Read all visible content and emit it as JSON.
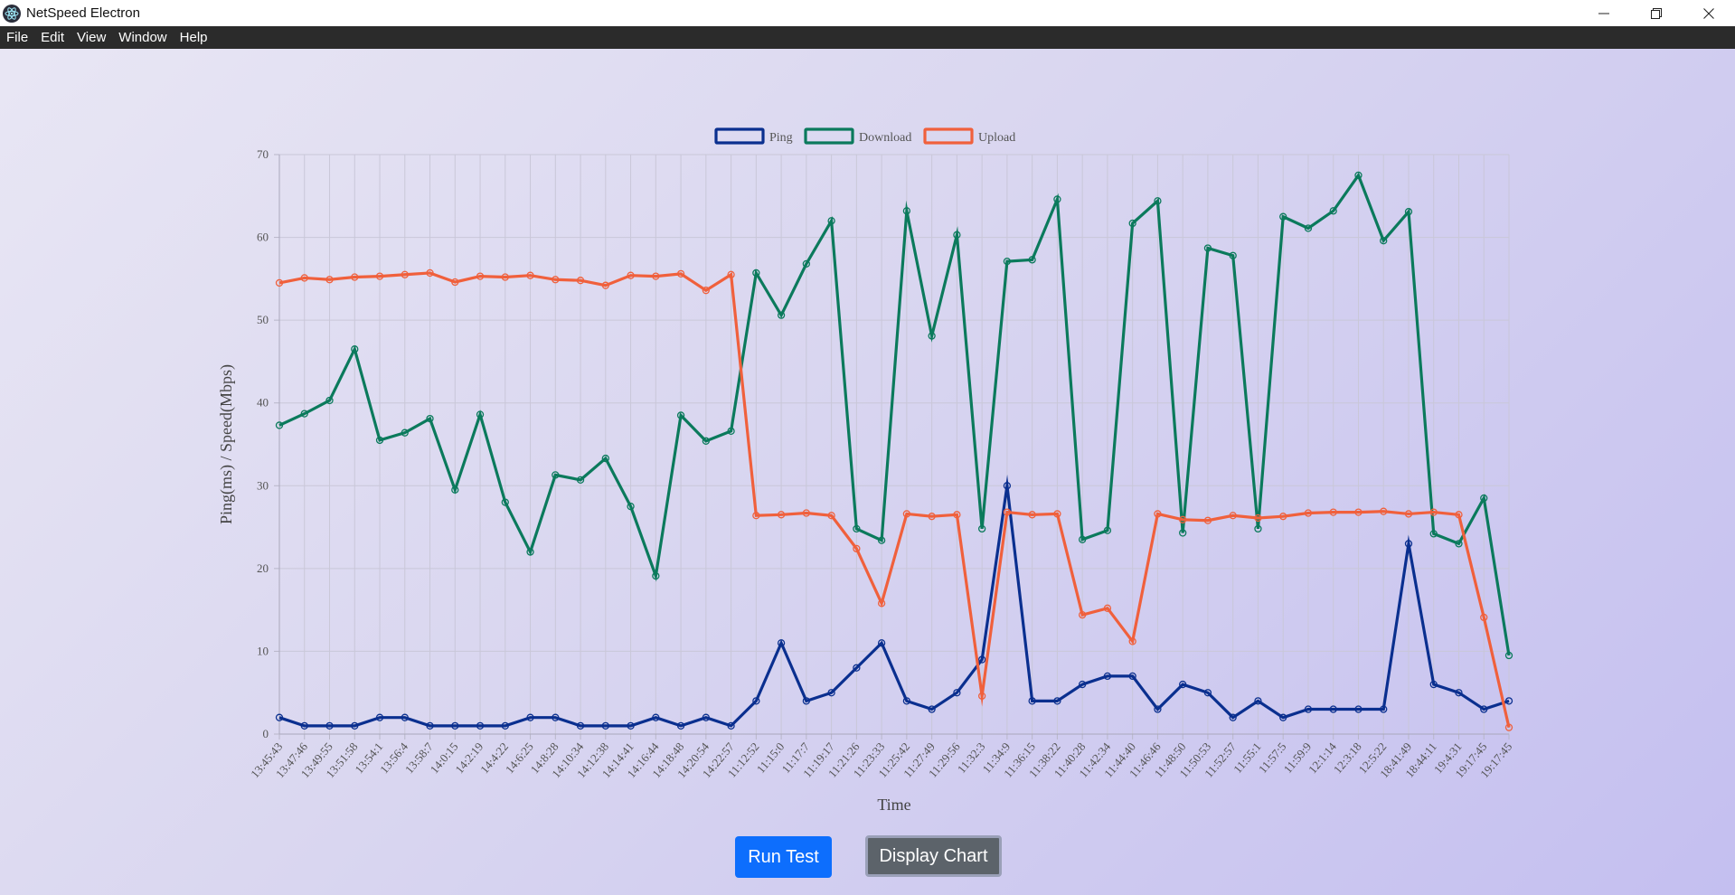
{
  "window": {
    "title": "NetSpeed Electron"
  },
  "menu": {
    "items": [
      "File",
      "Edit",
      "View",
      "Window",
      "Help"
    ]
  },
  "buttons": {
    "run_test": "Run Test",
    "display_chart": "Display Chart"
  },
  "chart_data": {
    "type": "line",
    "title": "",
    "xlabel": "Time",
    "ylabel": "Ping(ms) / Speed(Mbps)",
    "ylim": [
      0,
      70
    ],
    "yticks": [
      0,
      10,
      20,
      30,
      40,
      50,
      60,
      70
    ],
    "grid": true,
    "legend_position": "top-center",
    "x": [
      "13:45:43",
      "13:47:46",
      "13:49:55",
      "13:51:58",
      "13:54:1",
      "13:56:4",
      "13:58:7",
      "14:0:15",
      "14:2:19",
      "14:4:22",
      "14:6:25",
      "14:8:28",
      "14:10:34",
      "14:12:38",
      "14:14:41",
      "14:16:44",
      "14:18:48",
      "14:20:54",
      "14:22:57",
      "11:12:52",
      "11:15:0",
      "11:17:7",
      "11:19:17",
      "11:21:26",
      "11:23:33",
      "11:25:42",
      "11:27:49",
      "11:29:56",
      "11:32:3",
      "11:34:9",
      "11:36:15",
      "11:38:22",
      "11:40:28",
      "11:42:34",
      "11:44:40",
      "11:46:46",
      "11:48:50",
      "11:50:53",
      "11:52:57",
      "11:55:1",
      "11:57:5",
      "11:59:9",
      "12:1:14",
      "12:3:18",
      "12:5:22",
      "18:41:49",
      "18:44:11",
      "19:4:31",
      "19:17:45",
      "19:17:45"
    ],
    "series": [
      {
        "name": "Ping",
        "color": "#0a2f8f",
        "values": [
          2,
          1,
          1,
          1,
          2,
          2,
          1,
          1,
          1,
          1,
          2,
          2,
          1,
          1,
          1,
          2,
          1,
          2,
          1,
          4,
          11,
          4,
          5,
          8,
          11,
          4,
          3,
          5,
          9,
          30,
          4,
          4,
          6,
          7,
          7,
          3,
          6,
          5,
          2,
          4,
          2,
          3,
          3,
          3,
          3,
          23,
          6,
          5,
          3,
          4
        ]
      },
      {
        "name": "Download",
        "color": "#0b7a5c",
        "values": [
          37.3,
          38.7,
          40.3,
          46.5,
          35.5,
          36.4,
          38.1,
          29.5,
          38.6,
          28,
          22,
          31.3,
          30.7,
          33.3,
          27.5,
          19.1,
          38.5,
          35.4,
          36.6,
          55.7,
          50.6,
          56.8,
          62,
          24.8,
          23.4,
          63.2,
          48.1,
          60.3,
          24.8,
          57.1,
          57.3,
          64.6,
          23.5,
          24.6,
          61.7,
          64.4,
          24.3,
          58.7,
          57.8,
          24.8,
          62.5,
          61.1,
          63.2,
          67.5,
          59.6,
          63.1,
          24.2,
          23,
          28.5,
          9.5
        ]
      },
      {
        "name": "Upload",
        "color": "#f0603c",
        "values": [
          54.5,
          55.1,
          54.9,
          55.2,
          55.3,
          55.5,
          55.7,
          54.6,
          55.3,
          55.2,
          55.4,
          54.9,
          54.8,
          54.2,
          55.4,
          55.3,
          55.6,
          53.6,
          55.5,
          26.4,
          26.5,
          26.7,
          26.4,
          22.4,
          15.8,
          26.6,
          26.3,
          26.5,
          4.6,
          26.8,
          26.5,
          26.6,
          14.4,
          15.2,
          11.2,
          26.6,
          25.9,
          25.8,
          26.4,
          26.1,
          26.3,
          26.7,
          26.8,
          26.8,
          26.9,
          26.6,
          26.8,
          26.5,
          14.1,
          0.8
        ]
      }
    ]
  }
}
